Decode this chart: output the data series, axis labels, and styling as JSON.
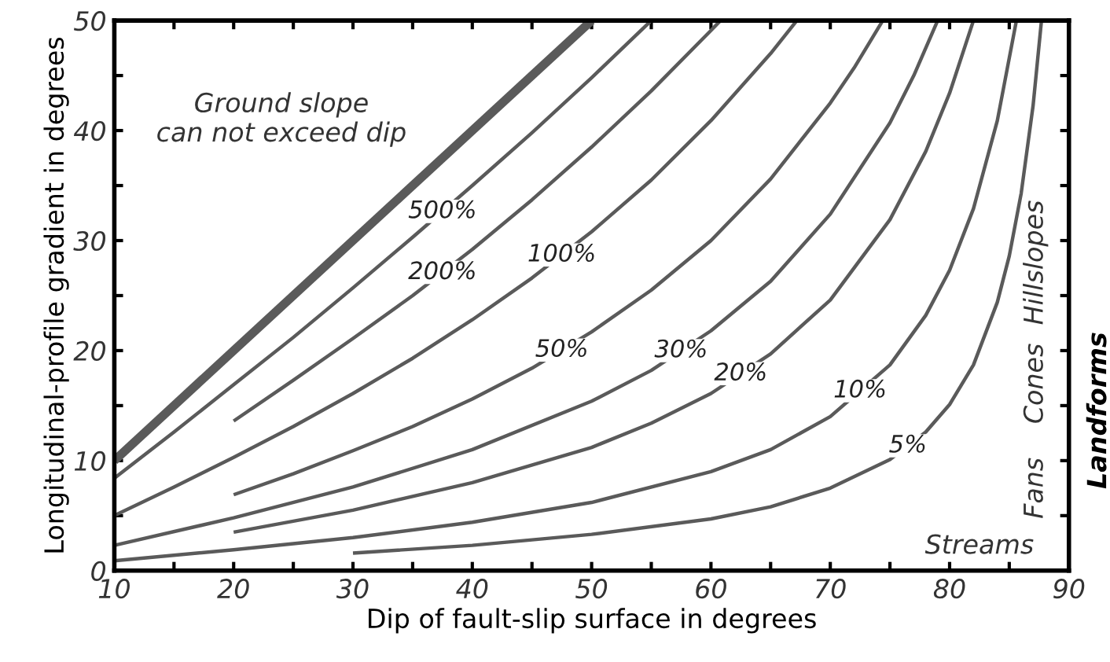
{
  "chart_data": {
    "type": "line",
    "xlabel": "Dip of fault-slip surface in degrees",
    "ylabel": "Longitudinal-profile gradient in degrees",
    "xlim": [
      10,
      90
    ],
    "ylim": [
      0,
      50
    ],
    "xticks": [
      10,
      {
        "value": 15,
        "label": null
      },
      20,
      {
        "value": 25,
        "label": null
      },
      30,
      {
        "value": 35,
        "label": null
      },
      40,
      {
        "value": 45,
        "label": null
      },
      50,
      {
        "value": 55,
        "label": null
      },
      60,
      {
        "value": 65,
        "label": null
      },
      70,
      {
        "value": 75,
        "label": null
      },
      80,
      {
        "value": 85,
        "label": null
      },
      90
    ],
    "yticks": [
      0,
      {
        "value": 5,
        "label": null
      },
      10,
      {
        "value": 15,
        "label": null
      },
      20,
      {
        "value": 25,
        "label": null
      },
      30,
      {
        "value": 35,
        "label": null
      },
      40,
      {
        "value": 45,
        "label": null
      },
      50
    ],
    "grid": false,
    "legend": false,
    "series": [
      {
        "color": "#5a5a5a",
        "x": [
          10,
          50
        ],
        "values": [
          10,
          50
        ]
      },
      {
        "name": "500%",
        "color": "#5a5a5a",
        "x": [
          10,
          15,
          20,
          25,
          30,
          35,
          40,
          45,
          50,
          55
        ],
        "values": [
          8.4,
          12.6,
          16.9,
          21.2,
          25.7,
          30.3,
          35.0,
          39.8,
          44.8,
          50
        ]
      },
      {
        "name": "200%",
        "color": "#5a5a5a",
        "x": [
          20,
          25,
          30,
          35,
          40,
          45,
          50,
          55,
          60,
          60.8
        ],
        "values": [
          13.6,
          17.3,
          21.1,
          25.0,
          29.2,
          33.7,
          38.5,
          43.6,
          49.1,
          50
        ]
      },
      {
        "name": "100%",
        "color": "#5a5a5a",
        "x": [
          10,
          15,
          20,
          25,
          30,
          35,
          40,
          45,
          50,
          55,
          60,
          65,
          67.2
        ],
        "values": [
          5.0,
          7.6,
          10.3,
          13.1,
          16.1,
          19.3,
          22.8,
          26.6,
          30.8,
          35.5,
          40.9,
          47.0,
          50
        ]
      },
      {
        "name": "50%",
        "color": "#5a5a5a",
        "x": [
          20,
          25,
          30,
          35,
          40,
          45,
          50,
          55,
          60,
          65,
          70,
          72,
          74.4
        ],
        "values": [
          6.9,
          8.8,
          10.9,
          13.1,
          15.6,
          18.4,
          21.7,
          25.5,
          30.0,
          35.6,
          42.5,
          45.7,
          50
        ]
      },
      {
        "name": "30%",
        "color": "#5a5a5a",
        "x": [
          10,
          20,
          30,
          40,
          50,
          55,
          60,
          65,
          70,
          75,
          77,
          79
        ],
        "values": [
          2.3,
          4.8,
          7.6,
          11.0,
          15.4,
          18.2,
          21.8,
          26.3,
          32.4,
          40.7,
          45.0,
          50
        ]
      },
      {
        "name": "20%",
        "color": "#5a5a5a",
        "x": [
          20,
          30,
          40,
          50,
          55,
          60,
          65,
          70,
          75,
          78,
          80,
          82
        ],
        "values": [
          3.5,
          5.5,
          8.0,
          11.2,
          13.4,
          16.1,
          19.7,
          24.6,
          31.9,
          38.1,
          43.4,
          50
        ]
      },
      {
        "name": "10%",
        "color": "#5a5a5a",
        "x": [
          10,
          20,
          30,
          40,
          50,
          60,
          65,
          70,
          75,
          78,
          80,
          82,
          84,
          85.6
        ],
        "values": [
          0.9,
          1.9,
          3.0,
          4.4,
          6.2,
          9.0,
          11.0,
          14.0,
          18.7,
          23.2,
          27.3,
          32.9,
          40.9,
          50
        ]
      },
      {
        "name": "5%",
        "color": "#5a5a5a",
        "x": [
          30,
          40,
          50,
          60,
          65,
          70,
          75,
          78,
          80,
          82,
          84,
          85,
          86,
          87,
          87.7
        ],
        "values": [
          1.6,
          2.3,
          3.3,
          4.7,
          5.8,
          7.5,
          10.1,
          12.6,
          15.1,
          18.7,
          24.4,
          28.6,
          34.3,
          42.3,
          50
        ]
      }
    ],
    "annotations": [
      "Ground slope\ncan not exceed dip",
      "Streams",
      "Fans",
      "Cones",
      "Hillslopes",
      "Landforms"
    ]
  }
}
